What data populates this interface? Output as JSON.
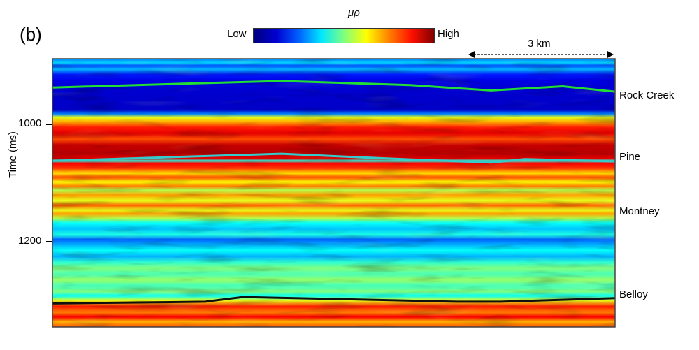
{
  "panel_label": "(b)",
  "colorbar": {
    "title": "μρ",
    "low_label": "Low",
    "high_label": "High",
    "colormap": "jet"
  },
  "scale_bar": {
    "label": "3 km"
  },
  "chart_data": {
    "type": "heatmap",
    "title": "",
    "ylabel": "Time (ms)",
    "xlabel": "",
    "yticks": [
      1000,
      1200
    ],
    "ytick_labels": [
      "1000",
      "1200"
    ],
    "ylim": [
      888,
      1345
    ],
    "xlim_km": [
      0,
      11.8
    ],
    "horizons": [
      {
        "name": "Rock Creek",
        "color": "#22dd33",
        "x_km": [
          0,
          3,
          4.8,
          7.5,
          9.2,
          10.7,
          11.8
        ],
        "time_ms": [
          937,
          930,
          926,
          933,
          942,
          935,
          944
        ]
      },
      {
        "name": "Pine",
        "color": "#33cccc",
        "x_km": [
          0,
          4.8,
          7,
          9.2,
          9.9,
          11.8
        ],
        "time_ms": [
          1062,
          1050,
          1058,
          1065,
          1059,
          1063
        ]
      },
      {
        "name": "Montney",
        "color": null,
        "label_time_ms": 1150
      },
      {
        "name": "Belloy",
        "color": "#111111",
        "x_km": [
          0,
          3.2,
          4,
          8.5,
          9.4,
          11.8
        ],
        "time_ms": [
          1305,
          1302,
          1294,
          1302,
          1302,
          1296
        ]
      }
    ]
  }
}
